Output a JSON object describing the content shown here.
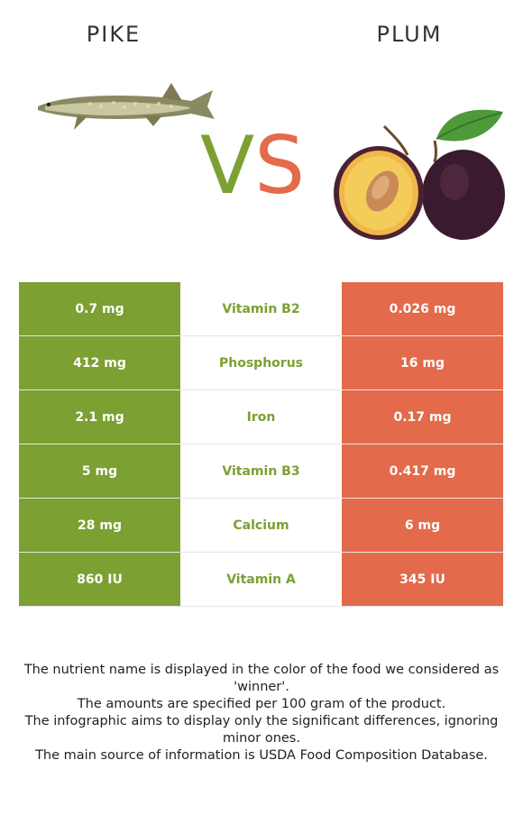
{
  "header": {
    "left_title": "PIKE",
    "right_title": "PLUM",
    "vs_v": "V",
    "vs_s": "S"
  },
  "colors": {
    "winner_left": "#7ca032",
    "winner_right": "#e36a4b"
  },
  "rows": [
    {
      "left": "0.7 mg",
      "nutrient": "Vitamin B2",
      "right": "0.026 mg"
    },
    {
      "left": "412 mg",
      "nutrient": "Phosphorus",
      "right": "16 mg"
    },
    {
      "left": "2.1 mg",
      "nutrient": "Iron",
      "right": "0.17 mg"
    },
    {
      "left": "5 mg",
      "nutrient": "Vitamin B3",
      "right": "0.417 mg"
    },
    {
      "left": "28 mg",
      "nutrient": "Calcium",
      "right": "6 mg"
    },
    {
      "left": "860 IU",
      "nutrient": "Vitamin A",
      "right": "345 IU"
    }
  ],
  "notes": [
    "The nutrient name is displayed in the color of the food we considered as 'winner'.",
    "The amounts are specified per 100 gram of the product.",
    "The infographic aims to display only the significant differences, ignoring minor ones.",
    "The main source of information is USDA Food Composition Database."
  ]
}
